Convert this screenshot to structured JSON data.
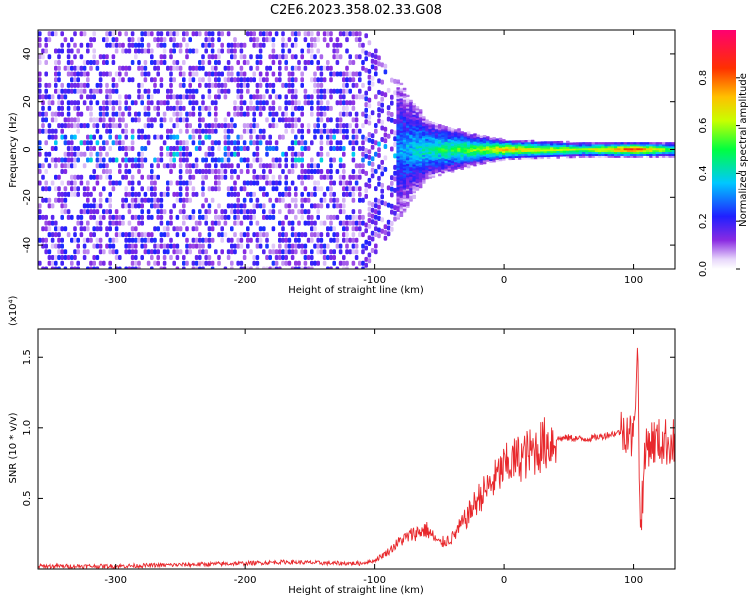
{
  "title": "C2E6.2023.358.02.33.G08",
  "chart_data": [
    {
      "type": "heatmap",
      "xlabel": "Height of straight line (km)",
      "ylabel": "Frequency (Hz)",
      "xlim": [
        -360,
        132
      ],
      "ylim": [
        -50,
        50
      ],
      "xticks": [
        -300,
        -200,
        -100,
        0,
        100
      ],
      "yticks": [
        -40,
        -20,
        0,
        20,
        40
      ],
      "colorbar": {
        "label": "Normalized spectral amplitude",
        "range": [
          0,
          1
        ],
        "ticks": [
          "0.0",
          "0.2",
          "0.4",
          "0.6",
          "0.8"
        ],
        "colormap": "rainbow"
      },
      "description_points": [
        {
          "x": -360,
          "bandwidth_hz": 50,
          "amplitude": 0.15
        },
        {
          "x": -200,
          "bandwidth_hz": 50,
          "amplitude": 0.18
        },
        {
          "x": -110,
          "bandwidth_hz": 50,
          "amplitude": 0.15
        },
        {
          "x": -60,
          "bandwidth_hz": 12,
          "amplitude": 0.45
        },
        {
          "x": -20,
          "bandwidth_hz": 6,
          "amplitude": 0.6
        },
        {
          "x": 0,
          "bandwidth_hz": 4,
          "amplitude": 0.75
        },
        {
          "x": 60,
          "bandwidth_hz": 3,
          "amplitude": 0.6
        },
        {
          "x": 100,
          "bandwidth_hz": 3,
          "amplitude": 0.9
        },
        {
          "x": 132,
          "bandwidth_hz": 3,
          "amplitude": 0.5
        }
      ]
    },
    {
      "type": "line",
      "xlabel": "Height of straight line (km)",
      "ylabel": "SNR (10 * v/v)",
      "yunit": "(x10⁴)",
      "xlim": [
        -360,
        132
      ],
      "ylim": [
        0,
        1.7
      ],
      "xticks": [
        -300,
        -200,
        -100,
        0,
        100
      ],
      "yticks": [
        "0.5",
        "1.0",
        "1.5"
      ],
      "series": [
        {
          "color": "#e8282c",
          "x": [
            -360,
            -300,
            -250,
            -200,
            -170,
            -130,
            -110,
            -100,
            -90,
            -80,
            -70,
            -60,
            -50,
            -40,
            -30,
            -20,
            -10,
            0,
            10,
            20,
            30,
            40,
            50,
            60,
            70,
            80,
            90,
            95,
            100,
            103,
            105,
            110,
            120,
            132
          ],
          "values": [
            0.02,
            0.02,
            0.03,
            0.04,
            0.05,
            0.04,
            0.04,
            0.06,
            0.12,
            0.2,
            0.25,
            0.28,
            0.18,
            0.22,
            0.35,
            0.5,
            0.6,
            0.72,
            0.78,
            0.82,
            0.88,
            0.92,
            0.93,
            0.92,
            0.93,
            0.95,
            0.97,
            1.0,
            0.9,
            1.65,
            0.3,
            0.9,
            0.9,
            0.9
          ]
        }
      ]
    }
  ]
}
